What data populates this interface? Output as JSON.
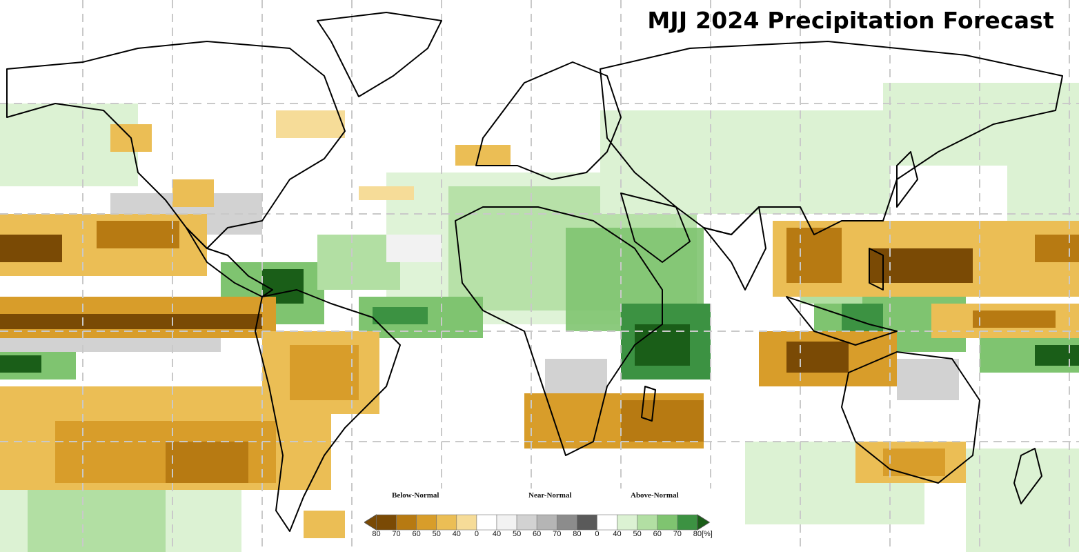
{
  "title": "MJJ 2024 Precipitation Forecast",
  "legend": {
    "categories": [
      "Below-Normal",
      "Near-Normal",
      "Above-Normal"
    ],
    "ticks": [
      "80",
      "70",
      "60",
      "50",
      "40",
      "0",
      "40",
      "50",
      "60",
      "70",
      "80",
      "0",
      "40",
      "50",
      "60",
      "70",
      "80"
    ],
    "unit": "[%]",
    "colors": {
      "below": [
        "#7a4a05",
        "#b77a12",
        "#d89d2a",
        "#ebbe55",
        "#f6dc98"
      ],
      "near": [
        "#ffffff",
        "#f2f2f2",
        "#d2d2d2",
        "#b5b5b5",
        "#8c8c8c",
        "#5a5a5a"
      ],
      "above": [
        "#ffffff",
        "#dcf2d3",
        "#b2dfa3",
        "#7fc470",
        "#3c9242",
        "#1a5e18"
      ]
    }
  },
  "colors": {
    "ocean": "#ffffff",
    "gridline": "#c8c8c8",
    "coastline": "#000000"
  }
}
